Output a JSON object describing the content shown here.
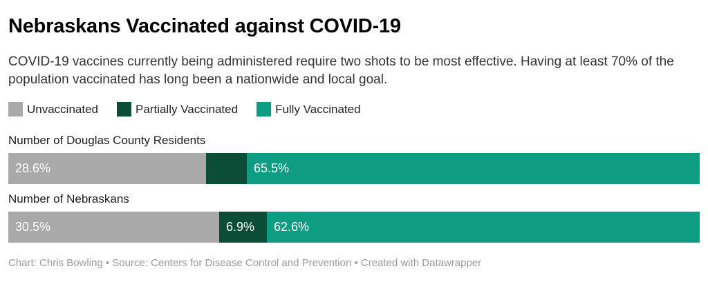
{
  "title": "Nebraskans Vaccinated against COVID-19",
  "subtitle": "COVID-19 vaccines currently being administered require two shots to be most effective. Having at least 70% of the population vaccinated has long been a nationwide and local goal.",
  "legend": [
    {
      "label": "Unvaccinated",
      "color": "#a9a9a9"
    },
    {
      "label": "Partially Vaccinated",
      "color": "#0b4d37"
    },
    {
      "label": "Fully Vaccinated",
      "color": "#0e9c82"
    }
  ],
  "chart_data": {
    "type": "bar",
    "subtype": "horizontal-stacked",
    "categories": [
      "Number of Douglas County Residents",
      "Number of Nebraskans"
    ],
    "series": [
      {
        "name": "Unvaccinated",
        "color": "#a9a9a9",
        "values": [
          28.6,
          30.5
        ]
      },
      {
        "name": "Partially Vaccinated",
        "color": "#0b4d37",
        "values": [
          5.9,
          6.9
        ]
      },
      {
        "name": "Fully Vaccinated",
        "color": "#0e9c82",
        "values": [
          65.5,
          62.6
        ]
      }
    ],
    "value_labels": [
      [
        "28.6%",
        "",
        "65.5%"
      ],
      [
        "30.5%",
        "6.9%",
        "62.6%"
      ]
    ],
    "xlim": [
      0,
      100
    ],
    "grid": false,
    "legend_position": "top"
  },
  "footer": "Chart: Chris Bowling • Source: Centers for Disease Control and Prevention • Created with Datawrapper"
}
